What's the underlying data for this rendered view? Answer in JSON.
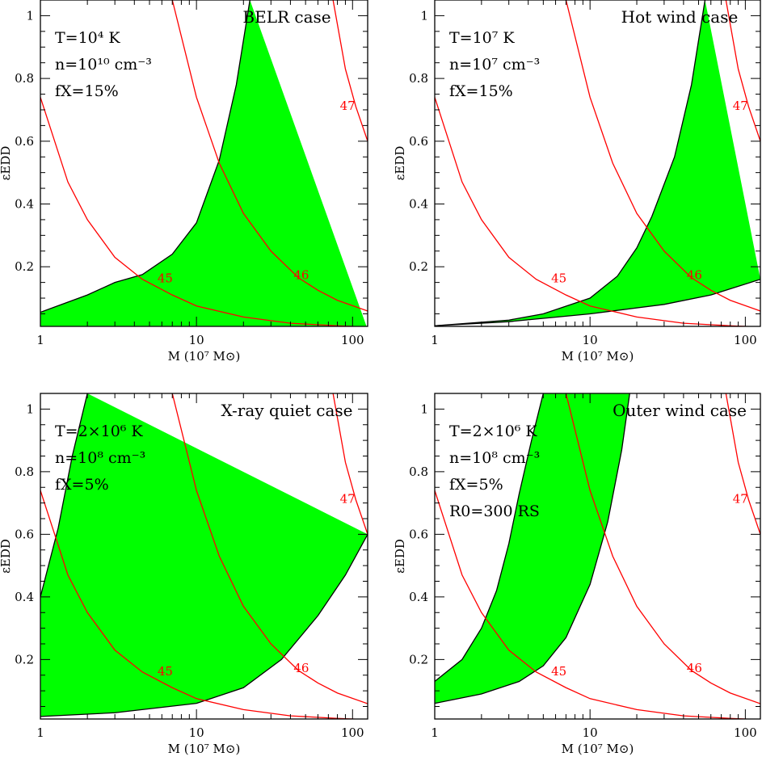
{
  "figure": {
    "panels_layout": "2x2",
    "colors": {
      "region_fill": "#00ff00",
      "region_edge": "#000000",
      "curve": "#ff0000",
      "axes": "#000000"
    }
  },
  "chart_data": [
    {
      "type": "area",
      "title": "BELR case",
      "annotations": [
        "T=10⁴ K",
        "n=10¹⁰ cm⁻³",
        "fX=15%"
      ],
      "xlabel": "M (10⁷ M⊙)",
      "ylabel": "εEDD",
      "xscale": "log",
      "xlim": [
        1,
        125
      ],
      "ylim": [
        0.01,
        1.05
      ],
      "xticks": [
        "1",
        "10",
        "100"
      ],
      "yticks": [
        "0.2",
        "0.4",
        "0.6",
        "0.8",
        "1"
      ],
      "region": {
        "lower": [
          [
            1,
            0.0
          ],
          [
            125,
            0.0
          ]
        ],
        "upper": [
          [
            1,
            0.055
          ],
          [
            2,
            0.11
          ],
          [
            3,
            0.15
          ],
          [
            4.5,
            0.175
          ],
          [
            7,
            0.24
          ],
          [
            10,
            0.34
          ],
          [
            14,
            0.54
          ],
          [
            18,
            0.78
          ],
          [
            22,
            1.05
          ]
        ]
      },
      "curves": [
        {
          "label": "45",
          "label_at": [
            6.3,
            0.15
          ],
          "points": [
            [
              1,
              0.74
            ],
            [
              1.5,
              0.47
            ],
            [
              2,
              0.35
            ],
            [
              3,
              0.23
            ],
            [
              4.5,
              0.16
            ],
            [
              7,
              0.11
            ],
            [
              10,
              0.075
            ],
            [
              20,
              0.04
            ],
            [
              40,
              0.02
            ],
            [
              80,
              0.012
            ],
            [
              125,
              0.008
            ]
          ]
        },
        {
          "label": "46",
          "label_at": [
            47,
            0.16
          ],
          "points": [
            [
              7,
              1.05
            ],
            [
              10,
              0.74
            ],
            [
              14,
              0.53
            ],
            [
              20,
              0.37
            ],
            [
              30,
              0.25
            ],
            [
              45,
              0.165
            ],
            [
              60,
              0.125
            ],
            [
              80,
              0.093
            ],
            [
              125,
              0.059
            ]
          ]
        },
        {
          "label": "47",
          "label_at": [
            93,
            0.7
          ],
          "points": [
            [
              75,
              1.05
            ],
            [
              90,
              0.83
            ],
            [
              105,
              0.71
            ],
            [
              125,
              0.6
            ]
          ]
        }
      ]
    },
    {
      "type": "area",
      "title": "Hot wind case",
      "annotations": [
        "T=10⁷ K",
        "n=10⁷ cm⁻³",
        "fX=15%"
      ],
      "xlabel": "M (10⁷ M⊙)",
      "ylabel": "εEDD",
      "xscale": "log",
      "xlim": [
        1,
        125
      ],
      "ylim": [
        0.01,
        1.05
      ],
      "xticks": [
        "1",
        "10",
        "100"
      ],
      "yticks": [
        "0.2",
        "0.4",
        "0.6",
        "0.8",
        "1"
      ],
      "region": {
        "lower": [
          [
            1,
            0.012
          ],
          [
            3,
            0.025
          ],
          [
            10,
            0.05
          ],
          [
            30,
            0.08
          ],
          [
            60,
            0.11
          ],
          [
            125,
            0.16
          ]
        ],
        "upper": [
          [
            1,
            0.012
          ],
          [
            3,
            0.03
          ],
          [
            5,
            0.05
          ],
          [
            10,
            0.1
          ],
          [
            15,
            0.17
          ],
          [
            20,
            0.26
          ],
          [
            25,
            0.36
          ],
          [
            35,
            0.55
          ],
          [
            45,
            0.78
          ],
          [
            55,
            1.05
          ]
        ]
      },
      "curves": [
        {
          "label": "45",
          "label_at": [
            6.3,
            0.15
          ],
          "points": [
            [
              1,
              0.74
            ],
            [
              1.5,
              0.47
            ],
            [
              2,
              0.35
            ],
            [
              3,
              0.23
            ],
            [
              4.5,
              0.16
            ],
            [
              7,
              0.11
            ],
            [
              10,
              0.075
            ],
            [
              20,
              0.04
            ],
            [
              40,
              0.02
            ],
            [
              80,
              0.012
            ],
            [
              125,
              0.008
            ]
          ]
        },
        {
          "label": "46",
          "label_at": [
            47,
            0.16
          ],
          "points": [
            [
              7,
              1.05
            ],
            [
              10,
              0.74
            ],
            [
              14,
              0.53
            ],
            [
              20,
              0.37
            ],
            [
              30,
              0.25
            ],
            [
              45,
              0.165
            ],
            [
              60,
              0.125
            ],
            [
              80,
              0.093
            ],
            [
              125,
              0.059
            ]
          ]
        },
        {
          "label": "47",
          "label_at": [
            93,
            0.7
          ],
          "points": [
            [
              75,
              1.05
            ],
            [
              90,
              0.83
            ],
            [
              105,
              0.71
            ],
            [
              125,
              0.6
            ]
          ]
        }
      ]
    },
    {
      "type": "area",
      "title": "X-ray quiet case",
      "annotations": [
        "T=2×10⁶ K",
        "n=10⁸ cm⁻³",
        "fX=5%"
      ],
      "xlabel": "M (10⁷ M⊙)",
      "ylabel": "εEDD",
      "xscale": "log",
      "xlim": [
        1,
        125
      ],
      "ylim": [
        0.01,
        1.05
      ],
      "xticks": [
        "1",
        "10",
        "100"
      ],
      "yticks": [
        "0.2",
        "0.4",
        "0.6",
        "0.8",
        "1"
      ],
      "region": {
        "lower": [
          [
            1,
            0.018
          ],
          [
            3,
            0.03
          ],
          [
            10,
            0.06
          ],
          [
            20,
            0.11
          ],
          [
            35,
            0.2
          ],
          [
            60,
            0.34
          ],
          [
            90,
            0.47
          ],
          [
            125,
            0.6
          ]
        ],
        "upper": [
          [
            1,
            0.4
          ],
          [
            1.3,
            0.62
          ],
          [
            1.6,
            0.85
          ],
          [
            2,
            1.05
          ]
        ]
      },
      "curves": [
        {
          "label": "45",
          "label_at": [
            6.3,
            0.15
          ],
          "points": [
            [
              1,
              0.74
            ],
            [
              1.5,
              0.47
            ],
            [
              2,
              0.35
            ],
            [
              3,
              0.23
            ],
            [
              4.5,
              0.16
            ],
            [
              7,
              0.11
            ],
            [
              10,
              0.075
            ],
            [
              20,
              0.04
            ],
            [
              40,
              0.02
            ],
            [
              80,
              0.012
            ],
            [
              125,
              0.008
            ]
          ]
        },
        {
          "label": "46",
          "label_at": [
            47,
            0.16
          ],
          "points": [
            [
              7,
              1.05
            ],
            [
              10,
              0.74
            ],
            [
              14,
              0.53
            ],
            [
              20,
              0.37
            ],
            [
              30,
              0.25
            ],
            [
              45,
              0.165
            ],
            [
              60,
              0.125
            ],
            [
              80,
              0.093
            ],
            [
              125,
              0.059
            ]
          ]
        },
        {
          "label": "47",
          "label_at": [
            93,
            0.7
          ],
          "points": [
            [
              75,
              1.05
            ],
            [
              90,
              0.83
            ],
            [
              105,
              0.71
            ],
            [
              125,
              0.6
            ]
          ]
        }
      ]
    },
    {
      "type": "area",
      "title": "Outer wind case",
      "annotations": [
        "T=2×10⁶ K",
        "n=10⁸ cm⁻³",
        "fX=5%",
        "R0=300 RS"
      ],
      "xlabel": "M (10⁷ M⊙)",
      "ylabel": "εEDD",
      "xscale": "log",
      "xlim": [
        1,
        125
      ],
      "ylim": [
        0.01,
        1.05
      ],
      "xticks": [
        "1",
        "10",
        "100"
      ],
      "yticks": [
        "0.2",
        "0.4",
        "0.6",
        "0.8",
        "1"
      ],
      "region": {
        "lower": [
          [
            1,
            0.06
          ],
          [
            2,
            0.09
          ],
          [
            3.5,
            0.13
          ],
          [
            5,
            0.18
          ],
          [
            7,
            0.27
          ],
          [
            10,
            0.44
          ],
          [
            13,
            0.64
          ],
          [
            16,
            0.87
          ],
          [
            18,
            1.05
          ]
        ],
        "upper": [
          [
            1,
            0.13
          ],
          [
            1.5,
            0.2
          ],
          [
            2,
            0.3
          ],
          [
            2.5,
            0.42
          ],
          [
            3,
            0.57
          ],
          [
            3.5,
            0.73
          ],
          [
            4.2,
            0.9
          ],
          [
            5,
            1.05
          ]
        ]
      },
      "curves": [
        {
          "label": "45",
          "label_at": [
            6.3,
            0.15
          ],
          "points": [
            [
              1,
              0.74
            ],
            [
              1.5,
              0.47
            ],
            [
              2,
              0.35
            ],
            [
              3,
              0.23
            ],
            [
              4.5,
              0.16
            ],
            [
              7,
              0.11
            ],
            [
              10,
              0.075
            ],
            [
              20,
              0.04
            ],
            [
              40,
              0.02
            ],
            [
              80,
              0.012
            ],
            [
              125,
              0.008
            ]
          ]
        },
        {
          "label": "46",
          "label_at": [
            47,
            0.16
          ],
          "points": [
            [
              7,
              1.05
            ],
            [
              10,
              0.74
            ],
            [
              14,
              0.53
            ],
            [
              20,
              0.37
            ],
            [
              30,
              0.25
            ],
            [
              45,
              0.165
            ],
            [
              60,
              0.125
            ],
            [
              80,
              0.093
            ],
            [
              125,
              0.059
            ]
          ]
        },
        {
          "label": "47",
          "label_at": [
            93,
            0.7
          ],
          "points": [
            [
              75,
              1.05
            ],
            [
              90,
              0.83
            ],
            [
              105,
              0.71
            ],
            [
              125,
              0.6
            ]
          ]
        }
      ]
    }
  ]
}
